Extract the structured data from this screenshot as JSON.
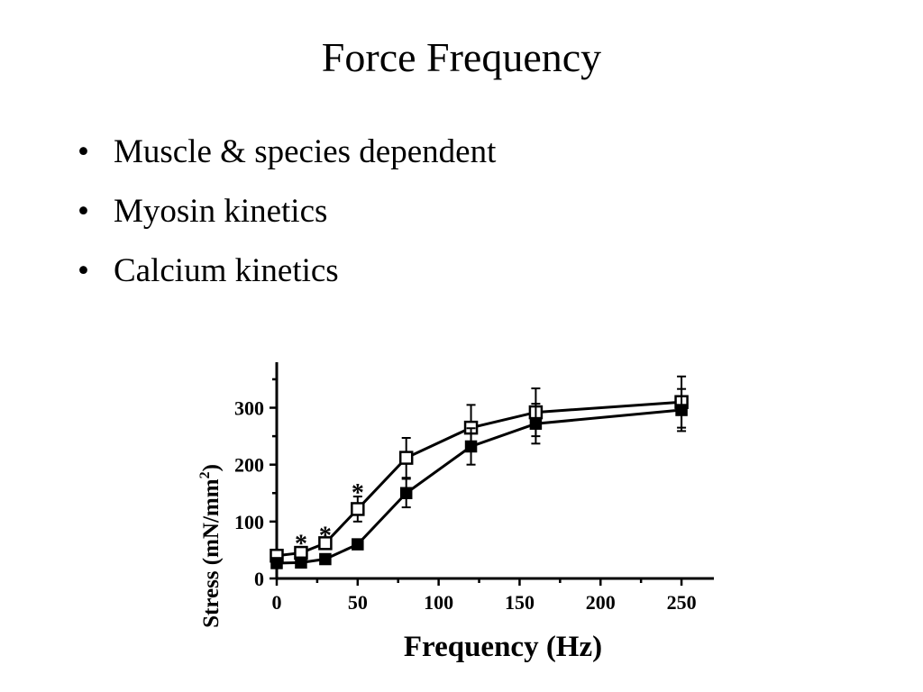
{
  "slide": {
    "title": "Force Frequency",
    "bullet_char": "•",
    "bullets": [
      "Muscle & species dependent",
      "Myosin kinetics",
      "Calcium kinetics"
    ]
  },
  "chart_data": {
    "type": "line",
    "xlabel": "Frequency (Hz)",
    "ylabel": "Stress (mN/mm",
    "ylabel_sup": "2",
    "ylabel_close": ")",
    "xlim": [
      0,
      270
    ],
    "ylim": [
      0,
      380
    ],
    "xticks": [
      0,
      50,
      100,
      150,
      200,
      250
    ],
    "yticks": [
      0,
      100,
      200,
      300
    ],
    "grid": false,
    "series": [
      {
        "marker": "open-square",
        "x": [
          0,
          15,
          30,
          50,
          80,
          120,
          160,
          250
        ],
        "y": [
          40,
          45,
          62,
          122,
          212,
          265,
          292,
          310
        ],
        "err": [
          8,
          8,
          8,
          22,
          35,
          40,
          42,
          45
        ]
      },
      {
        "marker": "filled-square",
        "x": [
          0,
          15,
          30,
          50,
          80,
          120,
          160,
          250
        ],
        "y": [
          27,
          28,
          34,
          60,
          150,
          232,
          272,
          296
        ],
        "err": [
          5,
          5,
          5,
          8,
          25,
          32,
          35,
          37
        ]
      }
    ],
    "annotations": [
      {
        "text": "*",
        "x": 15,
        "y": 66
      },
      {
        "text": "*",
        "x": 30,
        "y": 80
      },
      {
        "text": "*",
        "x": 50,
        "y": 155
      }
    ]
  }
}
